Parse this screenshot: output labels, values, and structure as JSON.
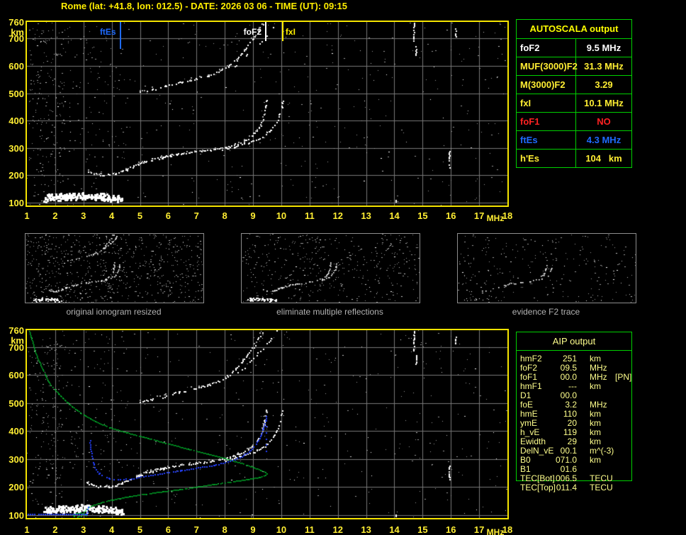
{
  "header": {
    "title": "Rome (lat: +41.8, lon: 012.5) - DATE: 2026 03 06 - TIME (UT): 09:15"
  },
  "autoscala_table": {
    "title": "AUTOSCALA output",
    "rows": [
      {
        "param": "foF2",
        "value": "9.5 MHz",
        "color": "#ffffff"
      },
      {
        "param": "MUF(3000)F2",
        "value": "31.3 MHz",
        "color": "#ffee33"
      },
      {
        "param": "M(3000)F2",
        "value": "3.29",
        "color": "#ffee33"
      },
      {
        "param": "fxI",
        "value": "10.1 MHz",
        "color": "#ffee33"
      },
      {
        "param": "foF1",
        "value": "NO",
        "color": "#ff2222"
      },
      {
        "param": "ftEs",
        "value": "4.3 MHz",
        "color": "#1f6bff"
      },
      {
        "param": "h'Es",
        "value": "104   km",
        "color": "#ffee33"
      }
    ]
  },
  "aip_table": {
    "title": "AIP output",
    "rows": [
      {
        "param": "hmF2",
        "value": "251",
        "unit": "km",
        "extra": ""
      },
      {
        "param": "foF2",
        "value": "09.5",
        "unit": "MHz",
        "extra": ""
      },
      {
        "param": "foF1",
        "value": "00.0",
        "unit": "MHz",
        "extra": "[PN]"
      },
      {
        "param": "hmF1",
        "value": "---",
        "unit": "km",
        "extra": ""
      },
      {
        "param": "D1",
        "value": "00.0",
        "unit": "",
        "extra": ""
      },
      {
        "param": "foE",
        "value": "3.2",
        "unit": "MHz",
        "extra": ""
      },
      {
        "param": "hmE",
        "value": "110",
        "unit": "km",
        "extra": ""
      },
      {
        "param": "ymE",
        "value": "20",
        "unit": "km",
        "extra": ""
      },
      {
        "param": "h_vE",
        "value": "119",
        "unit": "km",
        "extra": ""
      },
      {
        "param": "Ewidth",
        "value": "29",
        "unit": "km",
        "extra": ""
      },
      {
        "param": "DelN_vE",
        "value": "00.1",
        "unit": "m^(-3)",
        "extra": ""
      },
      {
        "param": "B0",
        "value": "071.0",
        "unit": "km",
        "extra": ""
      },
      {
        "param": "B1",
        "value": "01.6",
        "unit": "",
        "extra": ""
      },
      {
        "param": "TEC[Bot]",
        "value": "006.5",
        "unit": "TECU",
        "extra": ""
      },
      {
        "param": "TEC[Top]",
        "value": "011.4",
        "unit": "TECU",
        "extra": ""
      }
    ]
  },
  "captions": {
    "panel1": "original ionogram resized",
    "panel2": "eliminate multiple reflections",
    "panel3": "evidence F2 trace"
  },
  "chart_data": {
    "type": "scatter",
    "description": "Ionosonde ionogram: virtual height (km) vs sounding frequency (MHz); white echo traces, autoscaled markers, green restored electron-density profile and blue reconstructed trace",
    "x_axis": {
      "label": "MHz",
      "min": 1,
      "max": 18,
      "ticks": [
        1,
        2,
        3,
        4,
        5,
        6,
        7,
        8,
        9,
        10,
        11,
        12,
        13,
        14,
        15,
        16,
        17,
        18
      ]
    },
    "y_axis": {
      "label": "km",
      "min": 90,
      "max": 760,
      "ticks": [
        760,
        700,
        600,
        500,
        400,
        300,
        200,
        100
      ]
    },
    "scaled_values": {
      "foF2_MHz": 9.5,
      "MUF3000F2_MHz": 31.3,
      "M3000F2": 3.29,
      "fxI_MHz": 10.1,
      "foF1": "NO",
      "ftEs_MHz": 4.3,
      "hEs_km": 104
    },
    "markers": [
      {
        "label": "ftEs",
        "f": 4.3,
        "color": "#1f6bff",
        "len": 38,
        "side": "left"
      },
      {
        "label": "foF2",
        "f": 9.45,
        "color": "#ffffff",
        "len": 27,
        "side": "left"
      },
      {
        "label": "fxI",
        "f": 10.05,
        "color": "#ffee00",
        "len": 27,
        "side": "right"
      }
    ],
    "traces": {
      "es": [
        [
          1.6,
          116
        ],
        [
          1.9,
          118
        ],
        [
          2.2,
          120
        ],
        [
          2.5,
          122
        ],
        [
          2.8,
          123
        ],
        [
          3.1,
          123
        ],
        [
          3.4,
          121
        ],
        [
          3.7,
          119
        ],
        [
          4.0,
          116
        ],
        [
          4.2,
          114
        ],
        [
          4.35,
          112
        ]
      ],
      "f2_o": [
        [
          3.1,
          220
        ],
        [
          3.35,
          208
        ],
        [
          3.6,
          204
        ],
        [
          3.9,
          203
        ],
        [
          4.15,
          208
        ],
        [
          4.5,
          222
        ],
        [
          4.85,
          240
        ],
        [
          5.2,
          254
        ],
        [
          5.55,
          264
        ],
        [
          5.9,
          272
        ],
        [
          6.3,
          278
        ],
        [
          6.7,
          284
        ],
        [
          7.1,
          289
        ],
        [
          7.5,
          294
        ],
        [
          7.9,
          301
        ],
        [
          8.3,
          312
        ],
        [
          8.65,
          326
        ],
        [
          8.95,
          345
        ],
        [
          9.15,
          368
        ],
        [
          9.3,
          395
        ],
        [
          9.38,
          425
        ],
        [
          9.43,
          455
        ],
        [
          9.46,
          485
        ]
      ],
      "f2_o2": [
        [
          4.3,
          216
        ],
        [
          4.8,
          236
        ],
        [
          5.3,
          254
        ],
        [
          5.8,
          266
        ],
        [
          6.3,
          274
        ]
      ],
      "f2_x": [
        [
          7.9,
          296
        ],
        [
          8.3,
          304
        ],
        [
          8.7,
          315
        ],
        [
          9.0,
          326
        ],
        [
          9.3,
          341
        ],
        [
          9.55,
          360
        ],
        [
          9.75,
          385
        ],
        [
          9.9,
          415
        ],
        [
          10.0,
          450
        ],
        [
          10.05,
          482
        ]
      ],
      "hop2_o": [
        [
          5.0,
          505
        ],
        [
          5.4,
          514
        ],
        [
          5.9,
          527
        ],
        [
          6.4,
          541
        ],
        [
          6.9,
          553
        ],
        [
          7.4,
          566
        ],
        [
          7.8,
          580
        ],
        [
          8.1,
          597
        ],
        [
          8.4,
          624
        ],
        [
          8.65,
          654
        ],
        [
          8.85,
          681
        ],
        [
          9.05,
          709
        ],
        [
          9.2,
          734
        ],
        [
          9.32,
          752
        ],
        [
          9.38,
          760
        ]
      ],
      "hop2_x": [
        [
          8.35,
          598
        ],
        [
          8.6,
          622
        ],
        [
          8.85,
          648
        ],
        [
          9.1,
          672
        ],
        [
          9.35,
          696
        ],
        [
          9.55,
          718
        ],
        [
          9.7,
          740
        ],
        [
          9.8,
          757
        ]
      ],
      "rfi": [
        {
          "f": 14.68,
          "a": 758,
          "b": 688
        },
        {
          "f": 14.75,
          "a": 672,
          "b": 640
        },
        {
          "f": 16.15,
          "a": 736,
          "b": 706
        },
        {
          "f": 15.93,
          "a": 288,
          "b": 230
        },
        {
          "f": 14.05,
          "a": 112,
          "b": 98
        }
      ]
    },
    "overlays": {
      "profile_green": {
        "color": "#00d633",
        "points": [
          [
            1.08,
            758
          ],
          [
            1.3,
            680
          ],
          [
            1.55,
            620
          ],
          [
            1.8,
            570
          ],
          [
            2.1,
            535
          ],
          [
            2.4,
            505
          ],
          [
            2.7,
            480
          ],
          [
            3.0,
            458
          ],
          [
            3.4,
            436
          ],
          [
            3.9,
            414
          ],
          [
            4.5,
            396
          ],
          [
            5.1,
            380
          ],
          [
            5.9,
            359
          ],
          [
            6.7,
            337
          ],
          [
            7.4,
            319
          ],
          [
            8.0,
            304
          ],
          [
            8.6,
            286
          ],
          [
            9.0,
            272
          ],
          [
            9.25,
            262
          ],
          [
            9.42,
            254
          ],
          [
            9.48,
            250
          ],
          [
            9.42,
            243
          ],
          [
            9.2,
            236
          ],
          [
            8.8,
            229
          ],
          [
            8.2,
            220
          ],
          [
            7.6,
            211
          ],
          [
            7.0,
            202
          ],
          [
            6.4,
            193
          ],
          [
            5.8,
            185
          ],
          [
            5.2,
            177
          ],
          [
            4.6,
            168
          ],
          [
            4.0,
            156
          ],
          [
            3.6,
            146
          ],
          [
            3.3,
            135
          ],
          [
            3.1,
            124
          ],
          [
            3.0,
            114
          ],
          [
            2.96,
            105
          ],
          [
            2.9,
            98
          ],
          [
            2.78,
            95
          ],
          [
            2.66,
            97
          ],
          [
            2.62,
            102
          ],
          [
            2.72,
            107
          ],
          [
            2.88,
            109
          ],
          [
            3.02,
            106
          ],
          [
            3.08,
            99
          ]
        ]
      },
      "restored_blue": {
        "color": "#2441ff",
        "es_line": [
          [
            1.02,
            104
          ],
          [
            3.06,
            104
          ]
        ],
        "e_tail": [
          [
            3.1,
            106
          ],
          [
            3.14,
            122
          ],
          [
            3.17,
            140
          ]
        ],
        "f_branch": [
          [
            3.22,
            368
          ],
          [
            3.26,
            330
          ],
          [
            3.3,
            305
          ],
          [
            3.36,
            283
          ],
          [
            3.44,
            264
          ],
          [
            3.55,
            250
          ],
          [
            3.7,
            240
          ],
          [
            3.9,
            233
          ],
          [
            4.2,
            229
          ],
          [
            4.5,
            230
          ],
          [
            4.85,
            235
          ],
          [
            5.2,
            241
          ],
          [
            5.6,
            248
          ],
          [
            6.0,
            255
          ],
          [
            6.4,
            261
          ],
          [
            6.8,
            267
          ],
          [
            7.2,
            273
          ],
          [
            7.6,
            280
          ],
          [
            8.0,
            289
          ],
          [
            8.35,
            300
          ],
          [
            8.65,
            314
          ],
          [
            8.9,
            332
          ],
          [
            9.1,
            355
          ],
          [
            9.25,
            383
          ],
          [
            9.35,
            412
          ],
          [
            9.42,
            438
          ],
          [
            9.45,
            455
          ]
        ],
        "asymptote": [
          [
            9.45,
            330
          ],
          [
            9.46,
            352
          ],
          [
            9.45,
            374
          ],
          [
            9.46,
            396
          ],
          [
            9.45,
            418
          ],
          [
            9.46,
            440
          ]
        ]
      }
    },
    "style": {
      "grid_color": "#787878",
      "border_color": "#f5e400",
      "noise_gray": "#9c9c9c",
      "noise_light": "#c8c8c8",
      "trace_white": "#ffffff",
      "seeds": [
        11,
        22,
        33,
        44,
        55
      ]
    },
    "thumbnails": [
      {
        "traces": [
          "es",
          "f2_o",
          "f2_o2",
          "f2_x",
          "hop2_o",
          "hop2_x"
        ],
        "noise": 700,
        "prob": 0.6
      },
      {
        "traces": [
          "es",
          "f2_o",
          "f2_o2",
          "f2_x"
        ],
        "noise": 430,
        "prob": 0.55
      },
      {
        "traces": [
          "f2_o",
          "f2_x"
        ],
        "es_faint": true,
        "noise": 260,
        "prob": 0.3
      }
    ]
  }
}
